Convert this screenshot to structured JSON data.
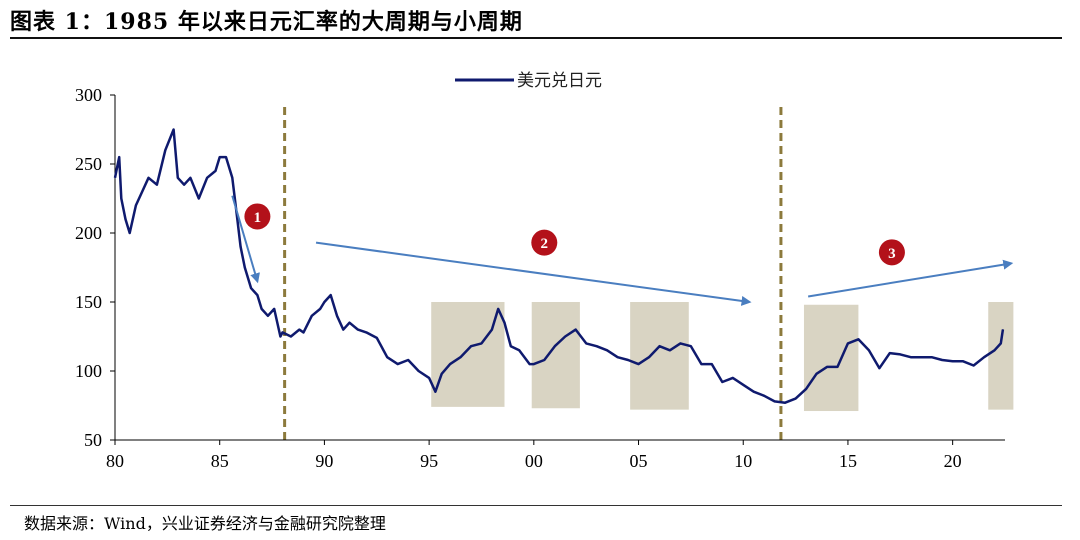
{
  "title": "图表 1：1985 年以来日元汇率的大周期与小周期",
  "source": "数据来源：Wind，兴业证券经济与金融研究院整理",
  "colors": {
    "line": "#0f1a6e",
    "arrow": "#4a7ec0",
    "divider": "#8c7a3c",
    "shade": "#d9d4c3",
    "badge": "#b3111a"
  },
  "chart_data": {
    "type": "line",
    "title": "",
    "xlabel": "",
    "ylabel": "",
    "xlim": [
      1980,
      2022.5
    ],
    "ylim": [
      50,
      300
    ],
    "yticks": [
      50,
      100,
      150,
      200,
      250,
      300
    ],
    "ytick_labels": [
      "50",
      "100",
      "150",
      "200",
      "250",
      "300"
    ],
    "xticks": [
      1980,
      1985,
      1990,
      1995,
      2000,
      2005,
      2010,
      2015,
      2020
    ],
    "xtick_labels": [
      "80",
      "85",
      "90",
      "95",
      "00",
      "05",
      "10",
      "15",
      "20"
    ],
    "grid": false,
    "legend_position": "top-center",
    "series": [
      {
        "name": "美元兑日元",
        "x": [
          1980.0,
          1980.2,
          1980.3,
          1980.5,
          1980.7,
          1981.0,
          1981.3,
          1981.6,
          1982.0,
          1982.4,
          1982.8,
          1983.0,
          1983.3,
          1983.6,
          1984.0,
          1984.4,
          1984.8,
          1985.0,
          1985.3,
          1985.6,
          1985.8,
          1986.0,
          1986.2,
          1986.5,
          1986.8,
          1987.0,
          1987.3,
          1987.6,
          1987.9,
          1988.0,
          1988.4,
          1988.8,
          1989.0,
          1989.4,
          1989.8,
          1990.0,
          1990.3,
          1990.6,
          1990.9,
          1991.2,
          1991.6,
          1992.0,
          1992.5,
          1993.0,
          1993.5,
          1994.0,
          1994.5,
          1995.0,
          1995.3,
          1995.6,
          1996.0,
          1996.5,
          1997.0,
          1997.5,
          1998.0,
          1998.3,
          1998.6,
          1998.9,
          1999.3,
          1999.8,
          2000.0,
          2000.5,
          2001.0,
          2001.5,
          2002.0,
          2002.5,
          2003.0,
          2003.5,
          2004.0,
          2004.5,
          2005.0,
          2005.5,
          2006.0,
          2006.5,
          2007.0,
          2007.5,
          2008.0,
          2008.5,
          2009.0,
          2009.5,
          2010.0,
          2010.5,
          2011.0,
          2011.5,
          2012.0,
          2012.5,
          2013.0,
          2013.5,
          2014.0,
          2014.5,
          2015.0,
          2015.5,
          2016.0,
          2016.5,
          2017.0,
          2017.5,
          2018.0,
          2018.5,
          2019.0,
          2019.5,
          2020.0,
          2020.5,
          2021.0,
          2021.5,
          2022.0,
          2022.3,
          2022.4
        ],
        "values": [
          240,
          255,
          225,
          210,
          200,
          220,
          230,
          240,
          235,
          260,
          275,
          240,
          235,
          240,
          225,
          240,
          245,
          255,
          255,
          240,
          215,
          190,
          175,
          160,
          155,
          145,
          140,
          145,
          125,
          128,
          125,
          130,
          128,
          140,
          145,
          150,
          155,
          140,
          130,
          135,
          130,
          128,
          124,
          110,
          105,
          108,
          100,
          95,
          85,
          98,
          105,
          110,
          118,
          120,
          130,
          145,
          135,
          118,
          115,
          105,
          105,
          108,
          118,
          125,
          130,
          120,
          118,
          115,
          110,
          108,
          105,
          110,
          118,
          115,
          120,
          118,
          105,
          105,
          92,
          95,
          90,
          85,
          82,
          78,
          77,
          80,
          87,
          98,
          103,
          103,
          120,
          123,
          115,
          102,
          113,
          112,
          110,
          110,
          110,
          108,
          107,
          107,
          104,
          110,
          115,
          120,
          130
        ]
      }
    ],
    "phase_markers": [
      1988.1,
      2011.8
    ],
    "shaded_periods": [
      {
        "start": 1995.1,
        "end": 1998.6,
        "ymin": 74,
        "ymax": 150
      },
      {
        "start": 1999.9,
        "end": 2002.2,
        "ymin": 73,
        "ymax": 150
      },
      {
        "start": 2004.6,
        "end": 2007.4,
        "ymin": 72,
        "ymax": 150
      },
      {
        "start": 2012.9,
        "end": 2015.5,
        "ymin": 71,
        "ymax": 148
      },
      {
        "start": 2021.7,
        "end": 2022.9,
        "ymin": 72,
        "ymax": 150
      }
    ],
    "trend_arrows": [
      {
        "from": [
          1985.6,
          227
        ],
        "to": [
          1986.8,
          165
        ]
      },
      {
        "from": [
          1989.6,
          193
        ],
        "to": [
          2010.3,
          150
        ]
      },
      {
        "from": [
          2013.1,
          154
        ],
        "to": [
          2022.8,
          178
        ]
      }
    ],
    "annotations": [
      {
        "text": "1",
        "x": 1986.8,
        "y": 212
      },
      {
        "text": "2",
        "x": 2000.5,
        "y": 193
      },
      {
        "text": "3",
        "x": 2017.1,
        "y": 186
      }
    ]
  }
}
